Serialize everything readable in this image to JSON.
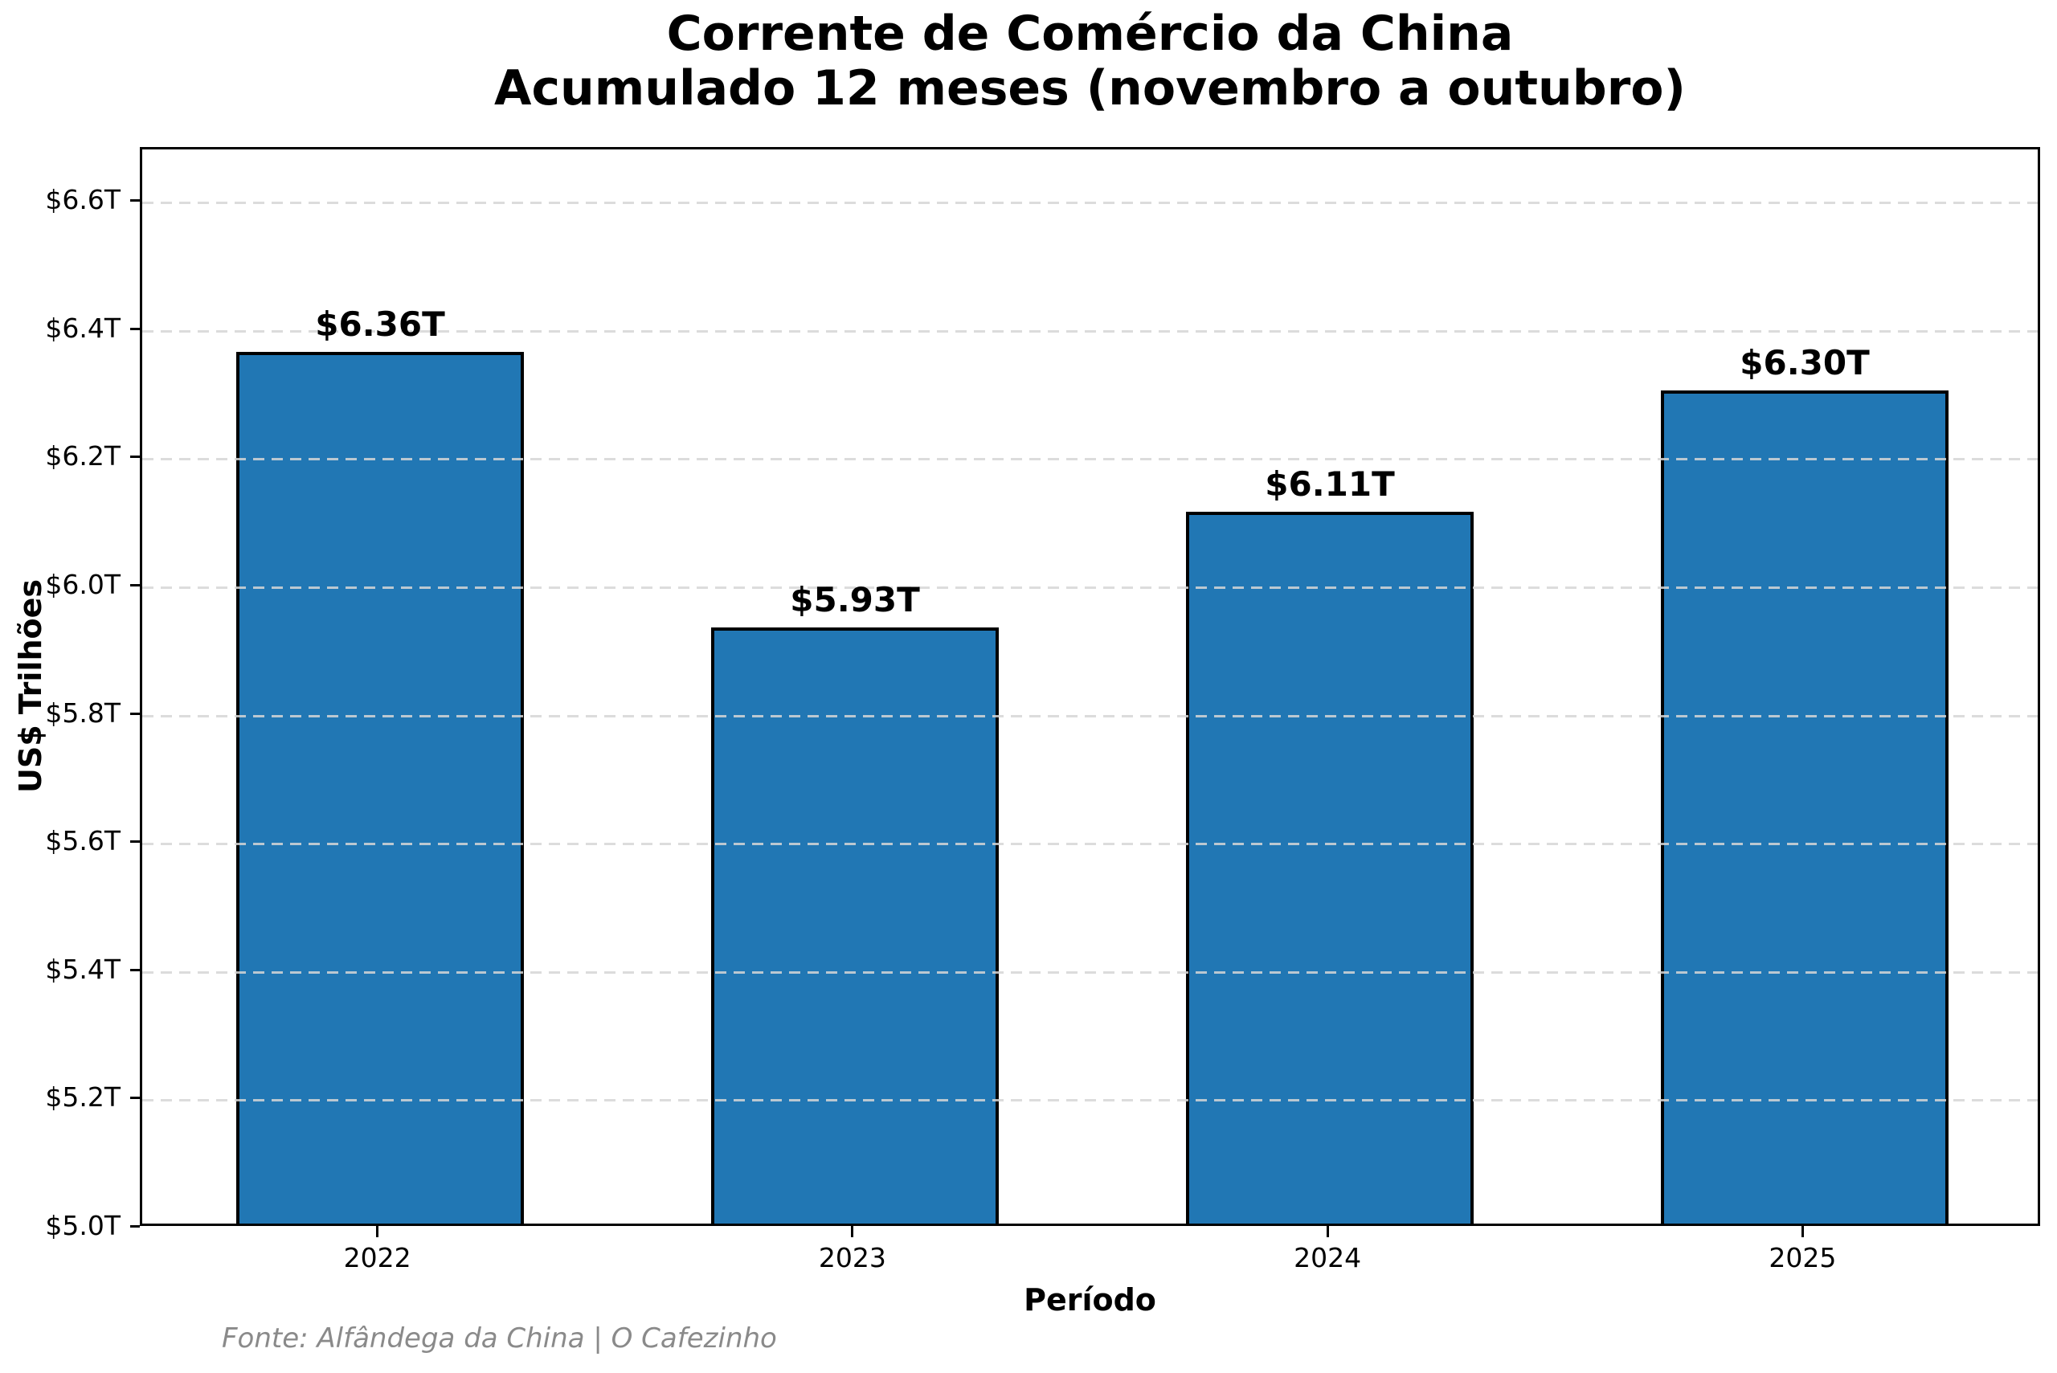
{
  "title": {
    "line1": "Corrente de Comércio da China",
    "line2": "Acumulado 12 meses (novembro a outubro)"
  },
  "footer": "Fonte: Alfândega da China | O Cafezinho",
  "chart_data": {
    "type": "bar",
    "title": "Corrente de Comércio da China — Acumulado 12 meses (novembro a outubro)",
    "xlabel": "Período",
    "ylabel": "US$ Trilhões",
    "categories": [
      "2022",
      "2023",
      "2024",
      "2025"
    ],
    "values": [
      6.36,
      5.93,
      6.11,
      6.3
    ],
    "bar_labels": [
      "$6.36T",
      "$5.93T",
      "$6.11T",
      "$6.30T"
    ],
    "ylim": [
      5.0,
      6.683
    ],
    "ytick_values": [
      5.0,
      5.2,
      5.4,
      5.6,
      5.8,
      6.0,
      6.2,
      6.4,
      6.6
    ],
    "ytick_labels": [
      "$5.0T",
      "$5.2T",
      "$5.4T",
      "$5.6T",
      "$5.8T",
      "$6.0T",
      "$6.2T",
      "$6.4T",
      "$6.6T"
    ],
    "bar_color": "#2177b4",
    "bar_edge_color": "#000000",
    "grid": true,
    "grid_style": "dashed",
    "legend": "none",
    "source": "Fonte: Alfândega da China | O Cafezinho"
  }
}
